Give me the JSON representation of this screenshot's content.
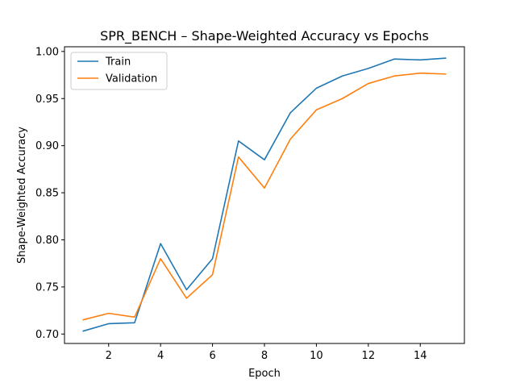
{
  "chart_data": {
    "type": "line",
    "title": "SPR_BENCH – Shape-Weighted Accuracy vs Epochs",
    "xlabel": "Epoch",
    "ylabel": "Shape-Weighted Accuracy",
    "xlim": [
      0.3,
      15.7
    ],
    "ylim": [
      0.69,
      1.005
    ],
    "xticks": [
      2,
      4,
      6,
      8,
      10,
      12,
      14
    ],
    "yticks": [
      0.7,
      0.75,
      0.8,
      0.85,
      0.9,
      0.95,
      1.0
    ],
    "ytick_labels": [
      "0.70",
      "0.75",
      "0.80",
      "0.85",
      "0.90",
      "0.95",
      "1.00"
    ],
    "grid": false,
    "legend_position": "top-left",
    "x": [
      1,
      2,
      3,
      4,
      5,
      6,
      7,
      8,
      9,
      10,
      11,
      12,
      13,
      14,
      15
    ],
    "series": [
      {
        "name": "Train",
        "color": "#1f77b4",
        "values": [
          0.703,
          0.711,
          0.712,
          0.796,
          0.747,
          0.78,
          0.905,
          0.885,
          0.935,
          0.961,
          0.974,
          0.982,
          0.992,
          0.991,
          0.993
        ]
      },
      {
        "name": "Validation",
        "color": "#ff7f0e",
        "values": [
          0.715,
          0.722,
          0.718,
          0.78,
          0.738,
          0.763,
          0.888,
          0.855,
          0.907,
          0.938,
          0.95,
          0.966,
          0.974,
          0.977,
          0.976
        ]
      }
    ]
  }
}
